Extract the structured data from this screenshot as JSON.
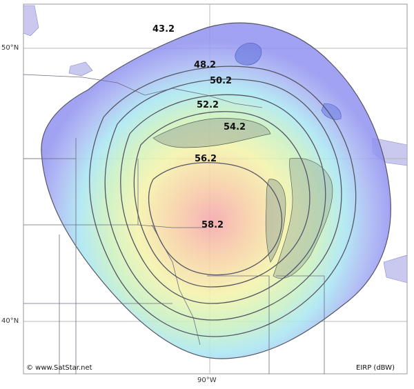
{
  "map": {
    "credit": "© www.SatStar.net",
    "unit_label": "EIRP (dBW)",
    "latitude_labels": [
      "50°N",
      "40°N"
    ],
    "longitude_labels": [
      "90°W"
    ],
    "contour_levels": [
      "43.2",
      "48.2",
      "50.2",
      "52.2",
      "54.2",
      "56.2",
      "58.2"
    ],
    "colors": {
      "outer": "#8f8ff0",
      "inner": "#f3a8a8",
      "land": "#ffffff",
      "water": "#c9c9f0",
      "contour_line": "#555566",
      "grid": "#b8b8b8"
    }
  }
}
